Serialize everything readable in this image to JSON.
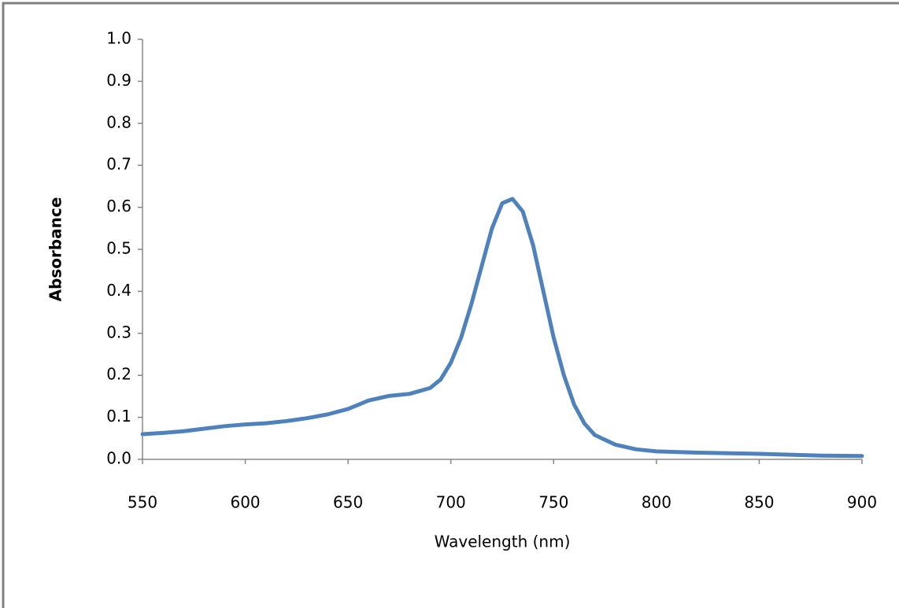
{
  "chart_data": {
    "type": "line",
    "x_label": "Wavelength (nm)",
    "y_label": "Absorbance",
    "x": [
      550,
      560,
      570,
      580,
      590,
      600,
      610,
      620,
      630,
      640,
      650,
      660,
      670,
      680,
      690,
      695,
      700,
      705,
      710,
      715,
      720,
      725,
      730,
      735,
      740,
      745,
      750,
      755,
      760,
      765,
      770,
      780,
      790,
      800,
      820,
      850,
      880,
      900
    ],
    "series": [
      {
        "color": "#4f81bd",
        "values": [
          0.06,
          0.063,
          0.067,
          0.073,
          0.079,
          0.083,
          0.086,
          0.091,
          0.098,
          0.107,
          0.12,
          0.14,
          0.151,
          0.156,
          0.17,
          0.19,
          0.23,
          0.29,
          0.37,
          0.46,
          0.55,
          0.61,
          0.62,
          0.59,
          0.51,
          0.4,
          0.29,
          0.2,
          0.13,
          0.085,
          0.058,
          0.035,
          0.024,
          0.019,
          0.016,
          0.013,
          0.009,
          0.008
        ]
      }
    ],
    "xlim": [
      550,
      900
    ],
    "xticks": [
      550,
      600,
      650,
      700,
      750,
      800,
      850,
      900
    ],
    "ylim": [
      0,
      1
    ],
    "yticks": [
      {
        "value": 0,
        "label": "0.0"
      },
      0.1,
      0.2,
      0.3,
      0.4,
      0.5,
      0.6,
      0.7,
      0.8,
      0.9,
      {
        "value": 1,
        "label": "1.0"
      }
    ],
    "grid": false
  }
}
